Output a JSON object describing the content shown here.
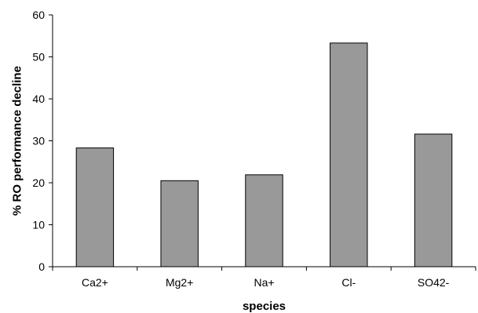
{
  "chart_data": {
    "type": "bar",
    "title": "",
    "xlabel": "species",
    "ylabel": "% RO performance decline",
    "categories": [
      "Ca2+",
      "Mg2+",
      "Na+",
      "Cl-",
      "SO42-"
    ],
    "values": [
      28.3,
      20.5,
      21.9,
      53.3,
      31.6
    ],
    "ylim": [
      0,
      60
    ],
    "yticks": [
      0,
      10,
      20,
      30,
      40,
      50,
      60
    ],
    "grid": false,
    "legend": "none",
    "bar_color": "#999999",
    "bar_edge_color": "#000000"
  }
}
